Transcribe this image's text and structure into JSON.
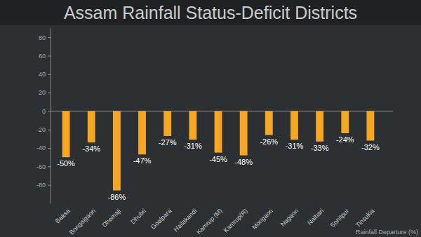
{
  "chart_data": {
    "type": "bar",
    "title": "Assam Rainfall Status-Deficit Districts",
    "xlabel": "Rainfall Departure (%)",
    "categories": [
      "Baksa",
      "Bongaigaon",
      "Dhemaji",
      "Dhubri",
      "Goalpara",
      "Hailakandi",
      "Kamrup (M)",
      "Kamrup(R)",
      "Morigaon",
      "Nagaon",
      "Nalbari",
      "Sonitpur",
      "Tinsukia"
    ],
    "values": [
      -50,
      -34,
      -86,
      -47,
      -27,
      -31,
      -45,
      -48,
      -26,
      -31,
      -33,
      -24,
      -32
    ],
    "value_labels": [
      "-50%",
      "-34%",
      "-86%",
      "-47%",
      "-27%",
      "-31%",
      "-45%",
      "-48%",
      "-26%",
      "-31%",
      "-33%",
      "-24%",
      "-32%"
    ],
    "color": "#f5a623",
    "ylim": [
      -100,
      90
    ],
    "yticks": [
      -80,
      -60,
      -40,
      -20,
      0,
      20,
      40,
      60,
      80
    ],
    "grid": false,
    "data_labels": true
  }
}
